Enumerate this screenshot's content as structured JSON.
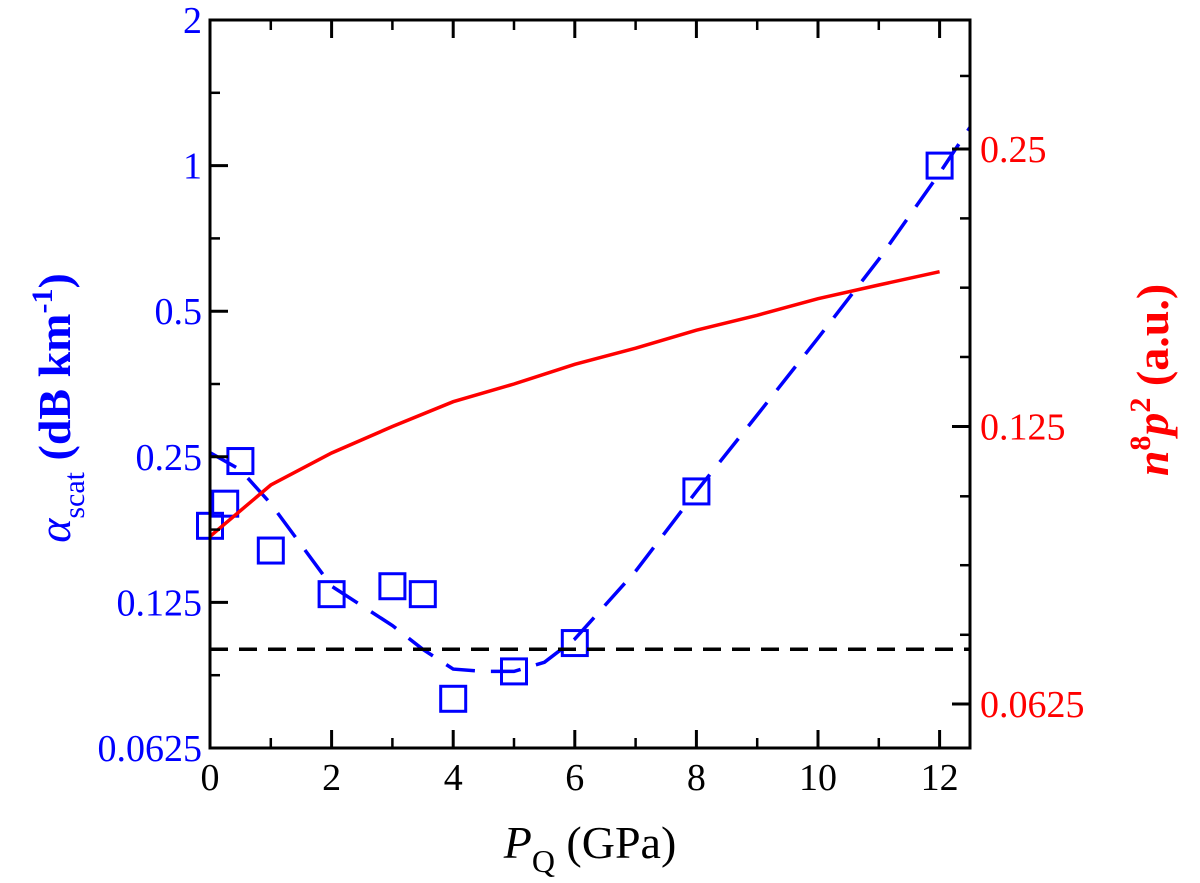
{
  "chart_data": {
    "type": "scatter",
    "x_axis": {
      "label_main": "P",
      "label_sub": "Q",
      "label_unit": " (GPa)",
      "range": [
        0,
        12.5
      ],
      "ticks": [
        0,
        2,
        4,
        6,
        8,
        10,
        12
      ],
      "tick_labels": [
        "0",
        "2",
        "4",
        "6",
        "8",
        "10",
        "12"
      ]
    },
    "y_left_axis": {
      "label_main": "α",
      "label_sub": "scat",
      "label_unit": " (dB km",
      "label_sup": "-1",
      "label_close": ")",
      "scale": "log2",
      "range": [
        0.0625,
        2
      ],
      "ticks": [
        0.0625,
        0.125,
        0.25,
        0.5,
        1,
        2
      ],
      "tick_labels": [
        "0.0625",
        "0.125",
        "0.25",
        "0.5",
        "1",
        "2"
      ],
      "color": "#0000ff"
    },
    "y_right_axis": {
      "label_main": "n",
      "label_sup1": "8",
      "label_mid": "p",
      "label_sup2": "2",
      "label_unit": " (a.u.)",
      "scale": "log2",
      "range": [
        0.056,
        0.345
      ],
      "ticks": [
        0.0625,
        0.125,
        0.25
      ],
      "tick_labels": [
        "0.0625",
        "0.125",
        "0.25"
      ],
      "color": "#ff0000"
    },
    "series": [
      {
        "style": "markers-open-square",
        "axis": "left",
        "color": "#0000ff",
        "points": [
          {
            "x": 0,
            "y": 0.18
          },
          {
            "x": 0.25,
            "y": 0.2
          },
          {
            "x": 0.5,
            "y": 0.245
          },
          {
            "x": 1,
            "y": 0.16
          },
          {
            "x": 2,
            "y": 0.13
          },
          {
            "x": 3,
            "y": 0.135
          },
          {
            "x": 3.5,
            "y": 0.13
          },
          {
            "x": 4,
            "y": 0.079
          },
          {
            "x": 5,
            "y": 0.09
          },
          {
            "x": 6,
            "y": 0.103
          },
          {
            "x": 8,
            "y": 0.212
          },
          {
            "x": 12,
            "y": 1.0
          }
        ]
      },
      {
        "style": "dashed-line",
        "axis": "left",
        "color": "#0000ff",
        "points": [
          {
            "x": 0,
            "y": 0.255
          },
          {
            "x": 0.5,
            "y": 0.235
          },
          {
            "x": 1,
            "y": 0.2
          },
          {
            "x": 2,
            "y": 0.135
          },
          {
            "x": 3,
            "y": 0.112
          },
          {
            "x": 3.5,
            "y": 0.1
          },
          {
            "x": 4,
            "y": 0.091
          },
          {
            "x": 4.5,
            "y": 0.09
          },
          {
            "x": 5,
            "y": 0.09
          },
          {
            "x": 5.5,
            "y": 0.094
          },
          {
            "x": 6,
            "y": 0.105
          },
          {
            "x": 7,
            "y": 0.145
          },
          {
            "x": 8,
            "y": 0.212
          },
          {
            "x": 9,
            "y": 0.305
          },
          {
            "x": 10,
            "y": 0.44
          },
          {
            "x": 11,
            "y": 0.64
          },
          {
            "x": 12,
            "y": 0.965
          },
          {
            "x": 12.5,
            "y": 1.2
          }
        ]
      },
      {
        "style": "dashed-line",
        "axis": "left",
        "color": "#000000",
        "points": [
          {
            "x": 0,
            "y": 0.1
          },
          {
            "x": 12.5,
            "y": 0.1
          }
        ]
      },
      {
        "style": "solid-line",
        "axis": "right",
        "color": "#ff0000",
        "points": [
          {
            "x": 0,
            "y": 0.095
          },
          {
            "x": 1,
            "y": 0.108
          },
          {
            "x": 2,
            "y": 0.117
          },
          {
            "x": 3,
            "y": 0.125
          },
          {
            "x": 4,
            "y": 0.133
          },
          {
            "x": 5,
            "y": 0.139
          },
          {
            "x": 6,
            "y": 0.146
          },
          {
            "x": 7,
            "y": 0.152
          },
          {
            "x": 8,
            "y": 0.159
          },
          {
            "x": 9,
            "y": 0.165
          },
          {
            "x": 10,
            "y": 0.172
          },
          {
            "x": 11,
            "y": 0.178
          },
          {
            "x": 12,
            "y": 0.184
          }
        ]
      }
    ]
  }
}
